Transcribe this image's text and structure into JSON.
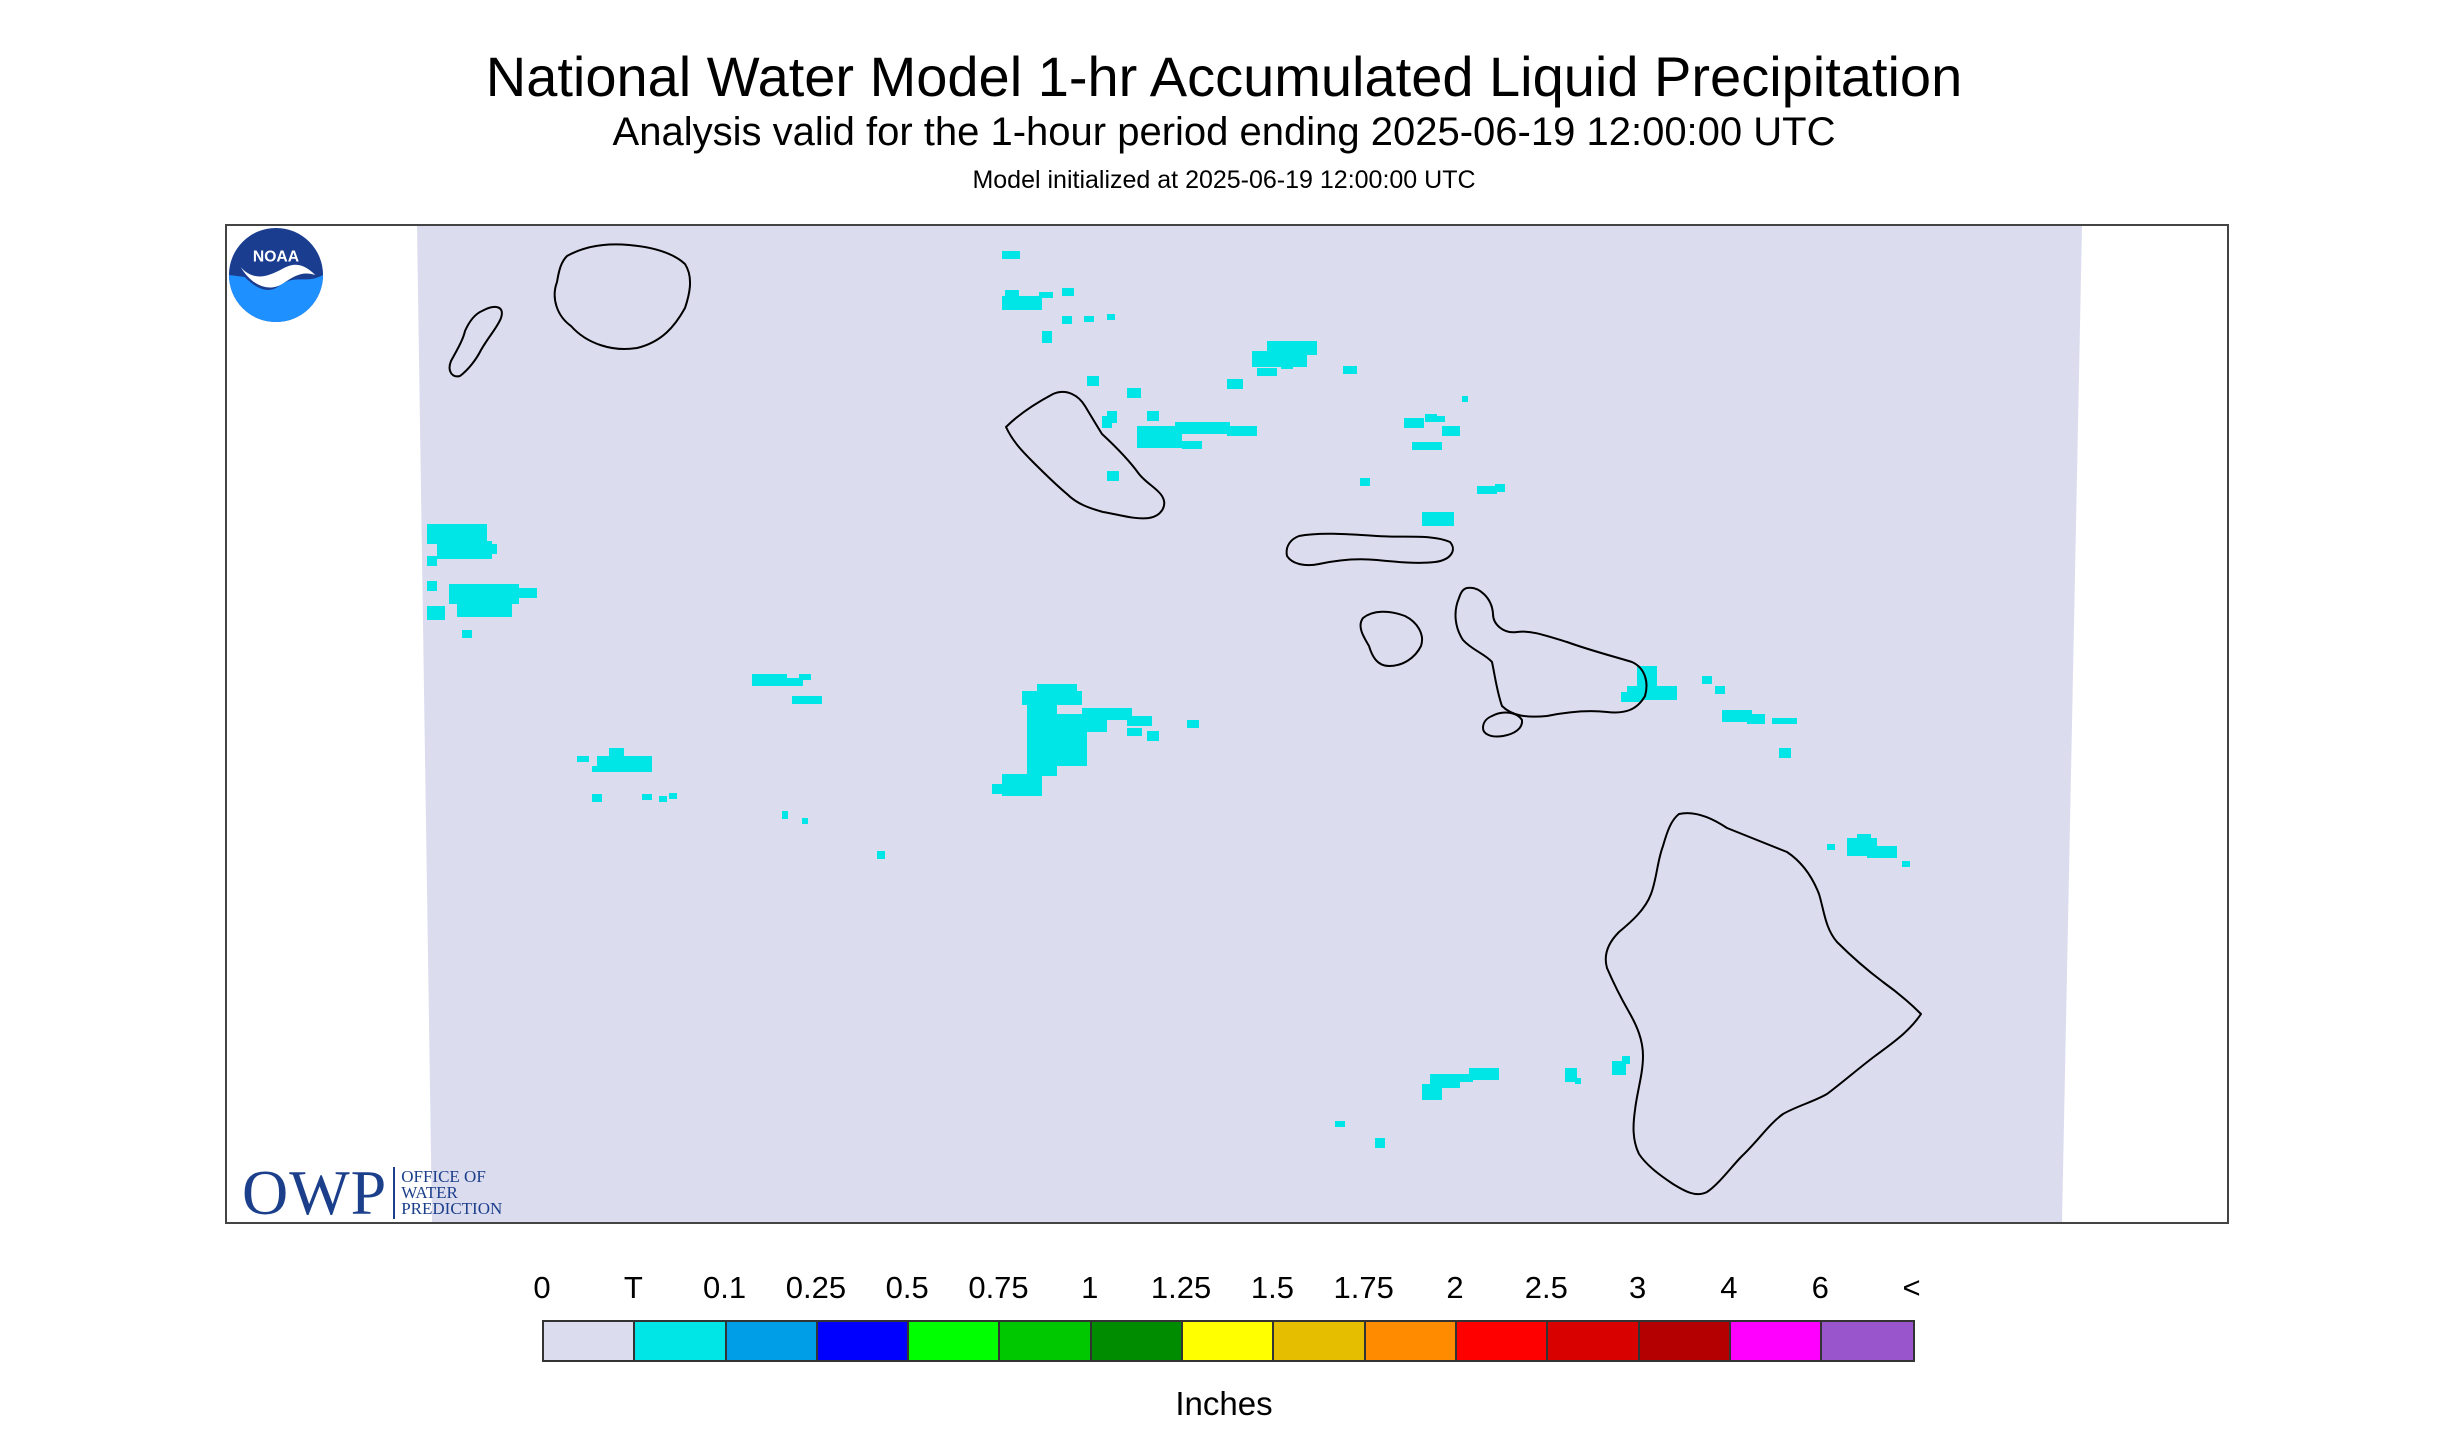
{
  "title": "National Water Model 1-hr Accumulated Liquid Precipitation",
  "subtitle": "Analysis valid for the 1-hour period ending 2025-06-19 12:00:00 UTC",
  "init_text": "Model initialized at 2025-06-19 12:00:00 UTC",
  "logos": {
    "owp_mark": "OWP",
    "owp_line1": "OFFICE OF",
    "owp_line2": "WATER",
    "owp_line3": "PREDICTION",
    "noaa": "NOAA"
  },
  "colors": {
    "domain_fill": "#dcdcef",
    "trace_cyan": "#00e5e5",
    "coastline": "#000000"
  },
  "legend": {
    "unit_label": "Inches",
    "tick_labels": [
      "0",
      "T",
      "0.1",
      "0.25",
      "0.5",
      "0.75",
      "1",
      "1.25",
      "1.5",
      "1.75",
      "2",
      "2.5",
      "3",
      "4",
      "6",
      "<"
    ],
    "colors": [
      "#dcdcef",
      "#00e5e5",
      "#009ee6",
      "#0000ff",
      "#00ff00",
      "#00c800",
      "#008c00",
      "#ffff00",
      "#e6be00",
      "#ff8c00",
      "#ff0000",
      "#d90000",
      "#b40000",
      "#ff00ff",
      "#9955cc"
    ]
  }
}
